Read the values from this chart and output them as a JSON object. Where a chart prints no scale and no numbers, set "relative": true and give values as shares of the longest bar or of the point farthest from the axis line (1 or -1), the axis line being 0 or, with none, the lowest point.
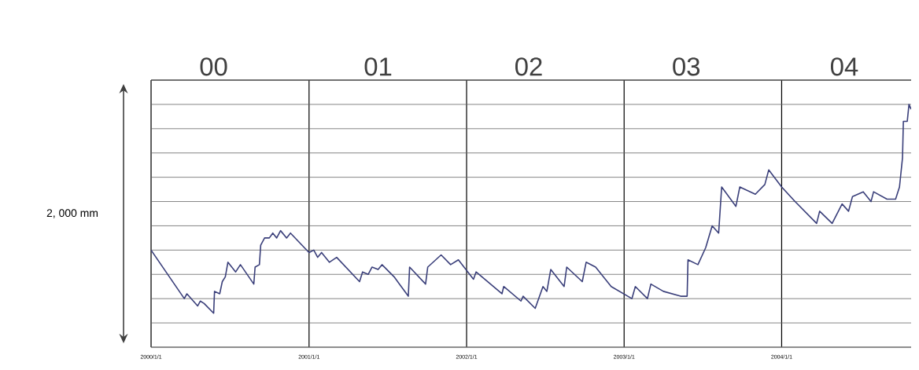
{
  "chart_data": {
    "type": "line",
    "relative": true,
    "ylabel": "2, 000 mm",
    "color": "#3a3f7a",
    "grid": true,
    "xlim": [
      "2000-01-01",
      "2004-10-27"
    ],
    "xticks": [
      {
        "value": "2000-01-01",
        "label": "2000/1/1"
      },
      {
        "value": "2001-01-01",
        "label": "2001/1/1"
      },
      {
        "value": "2002-01-01",
        "label": "2002/1/1"
      },
      {
        "value": "2003-01-01",
        "label": "2003/1/1"
      },
      {
        "value": "2004-01-01",
        "label": "2004/1/1"
      }
    ],
    "x2lim": [
      "2000-01-01",
      "2004-10-27"
    ],
    "x2ticks": [
      {
        "value": "2000-05-25",
        "label": "00"
      },
      {
        "value": "2001-06-10",
        "label": "01"
      },
      {
        "value": "2002-05-25",
        "label": "02"
      },
      {
        "value": "2003-05-25",
        "label": "03"
      },
      {
        "value": "2004-05-25",
        "label": "04"
      }
    ],
    "x": [
      "2000-01-01",
      "2000-03-18",
      "2000-03-24",
      "2000-04-18",
      "2000-04-24",
      "2000-05-03",
      "2000-05-25",
      "2000-05-27",
      "2000-06-08",
      "2000-06-14",
      "2000-06-21",
      "2000-06-27",
      "2000-07-06",
      "2000-07-15",
      "2000-07-26",
      "2000-08-26",
      "2000-08-29",
      "2000-09-08",
      "2000-09-11",
      "2000-09-20",
      "2000-10-01",
      "2000-10-09",
      "2000-10-18",
      "2000-10-27",
      "2000-11-10",
      "2000-11-19",
      "2001-01-01",
      "2001-01-12",
      "2001-01-21",
      "2001-01-30",
      "2001-02-17",
      "2001-03-06",
      "2001-04-28",
      "2001-05-05",
      "2001-05-18",
      "2001-05-27",
      "2001-06-10",
      "2001-06-19",
      "2001-07-17",
      "2001-08-19",
      "2001-08-22",
      "2001-09-28",
      "2001-10-03",
      "2001-11-03",
      "2001-11-25",
      "2001-12-13",
      "2002-01-17",
      "2002-01-23",
      "2002-03-24",
      "2002-03-28",
      "2002-05-07",
      "2002-05-12",
      "2002-06-09",
      "2002-06-27",
      "2002-07-06",
      "2002-07-15",
      "2002-08-15",
      "2002-08-21",
      "2002-09-26",
      "2002-10-05",
      "2002-10-27",
      "2002-12-02",
      "2003-01-19",
      "2003-01-27",
      "2003-02-24",
      "2003-03-04",
      "2003-04-02",
      "2003-05-12",
      "2003-05-27",
      "2003-05-29",
      "2003-06-21",
      "2003-07-09",
      "2003-07-24",
      "2003-08-08",
      "2003-08-15",
      "2003-09-17",
      "2003-09-26",
      "2003-11-01",
      "2003-11-23",
      "2003-12-02",
      "2004-01-01",
      "2004-02-01",
      "2004-03-22",
      "2004-03-29",
      "2004-04-27",
      "2004-05-20",
      "2004-06-04",
      "2004-06-13",
      "2004-07-08",
      "2004-07-26",
      "2004-08-01",
      "2004-09-01",
      "2004-09-21",
      "2004-09-30",
      "2004-10-07",
      "2004-10-09",
      "2004-10-18",
      "2004-10-22",
      "2004-10-27"
    ],
    "values": [
      0.4,
      0.2,
      0.22,
      0.17,
      0.19,
      0.18,
      0.14,
      0.23,
      0.22,
      0.27,
      0.29,
      0.35,
      0.33,
      0.31,
      0.34,
      0.26,
      0.33,
      0.34,
      0.42,
      0.45,
      0.45,
      0.47,
      0.45,
      0.48,
      0.45,
      0.47,
      0.39,
      0.4,
      0.37,
      0.39,
      0.35,
      0.37,
      0.27,
      0.31,
      0.3,
      0.33,
      0.32,
      0.34,
      0.29,
      0.21,
      0.33,
      0.26,
      0.33,
      0.38,
      0.34,
      0.36,
      0.28,
      0.31,
      0.22,
      0.25,
      0.19,
      0.21,
      0.16,
      0.25,
      0.23,
      0.32,
      0.25,
      0.33,
      0.27,
      0.35,
      0.33,
      0.25,
      0.2,
      0.25,
      0.2,
      0.26,
      0.23,
      0.21,
      0.21,
      0.36,
      0.34,
      0.41,
      0.5,
      0.47,
      0.66,
      0.58,
      0.66,
      0.63,
      0.67,
      0.73,
      0.66,
      0.6,
      0.51,
      0.56,
      0.51,
      0.59,
      0.56,
      0.62,
      0.64,
      0.6,
      0.64,
      0.61,
      0.61,
      0.66,
      0.78,
      0.93,
      0.93,
      1,
      0.98
    ]
  }
}
